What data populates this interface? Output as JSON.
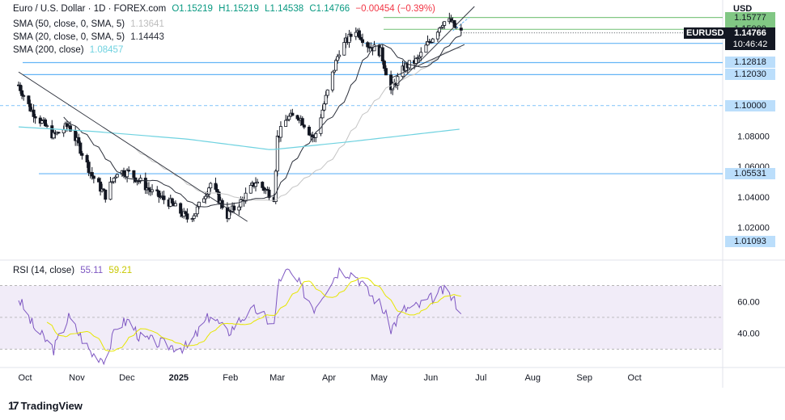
{
  "header": {
    "symbol_title": "Euro / U.S. Dollar · 1D · FOREX.com",
    "ohlc": {
      "o": "O1.15219",
      "h": "H1.15219",
      "l": "L1.14538",
      "c": "C1.14766",
      "chg": "−0.00454 (−0.39%)"
    }
  },
  "legend": {
    "sma50": {
      "label": "SMA (50, close, 0, SMA, 5)",
      "value": "1.13641",
      "color": "#bdbdbd"
    },
    "sma20": {
      "label": "SMA (20, close, 0, SMA, 5)",
      "value": "1.14443",
      "color": "#2a2e39"
    },
    "sma200": {
      "label": "SMA (200, close)",
      "value": "1.08457",
      "color": "#6fd2e0"
    }
  },
  "currency": "USD",
  "price_axis": {
    "ticks": [
      "1.10000",
      "1.08000",
      "1.06000",
      "1.04000",
      "1.02000"
    ],
    "current": {
      "symbol": "EURUSD",
      "price": "1.14766",
      "countdown": "10:46:42"
    },
    "levels": [
      {
        "value": "1.15777",
        "color": "#81c784",
        "text": "#131722"
      },
      {
        "value": "1.15000",
        "color": "#81c784",
        "text": "#131722"
      },
      {
        "value": "1.14079",
        "color": "#bbdefb",
        "text": "#131722"
      },
      {
        "value": "1.12818",
        "color": "#bbdefb",
        "text": "#131722"
      },
      {
        "value": "1.12030",
        "color": "#bbdefb",
        "text": "#131722"
      },
      {
        "value": "1.10000",
        "color": "#bbdefb",
        "text": "#131722"
      },
      {
        "value": "1.05531",
        "color": "#bbdefb",
        "text": "#131722"
      },
      {
        "value": "1.01093",
        "color": "#bbdefb",
        "text": "#131722"
      }
    ]
  },
  "rsi": {
    "label": "RSI (14, close)",
    "value": "55.11",
    "ma_value": "59.21",
    "ticks": [
      "60.00",
      "40.00"
    ]
  },
  "time_axis": [
    "Oct",
    "Nov",
    "Dec",
    "2025",
    "Feb",
    "Mar",
    "Apr",
    "May",
    "Jun",
    "Jul",
    "Aug",
    "Sep",
    "Oct"
  ],
  "footer": {
    "brand": "TradingView"
  },
  "chart_data": {
    "type": "candlestick",
    "price_range": [
      1.005,
      1.165
    ],
    "rsi_range": [
      22,
      82
    ],
    "anchors": [
      [
        "2024-10-01",
        1.1135
      ],
      [
        "2024-10-08",
        1.098
      ],
      [
        "2024-10-15",
        1.089
      ],
      [
        "2024-10-22",
        1.08
      ],
      [
        "2024-10-31",
        1.087
      ],
      [
        "2024-11-06",
        1.074
      ],
      [
        "2024-11-14",
        1.054
      ],
      [
        "2024-11-22",
        1.041
      ],
      [
        "2024-11-29",
        1.057
      ],
      [
        "2024-12-06",
        1.056
      ],
      [
        "2024-12-13",
        1.05
      ],
      [
        "2024-12-20",
        1.043
      ],
      [
        "2024-12-31",
        1.036
      ],
      [
        "2025-01-10",
        1.026
      ],
      [
        "2025-01-15",
        1.03
      ],
      [
        "2025-01-24",
        1.049
      ],
      [
        "2025-02-03",
        1.028
      ],
      [
        "2025-02-12",
        1.038
      ],
      [
        "2025-02-20",
        1.05
      ],
      [
        "2025-03-03",
        1.04
      ],
      [
        "2025-03-05",
        1.079
      ],
      [
        "2025-03-11",
        1.092
      ],
      [
        "2025-03-18",
        1.093
      ],
      [
        "2025-03-27",
        1.078
      ],
      [
        "2025-04-03",
        1.105
      ],
      [
        "2025-04-11",
        1.136
      ],
      [
        "2025-04-21",
        1.15
      ],
      [
        "2025-04-28",
        1.14
      ],
      [
        "2025-05-06",
        1.135
      ],
      [
        "2025-05-12",
        1.11
      ],
      [
        "2025-05-20",
        1.125
      ],
      [
        "2025-05-28",
        1.13
      ],
      [
        "2025-06-04",
        1.142
      ],
      [
        "2025-06-12",
        1.155
      ],
      [
        "2025-06-17",
        1.155
      ],
      [
        "2025-06-20",
        1.15
      ],
      [
        "2025-06-23",
        1.1477
      ]
    ],
    "sma200_anchors": [
      [
        "2024-10-01",
        1.086
      ],
      [
        "2024-11-15",
        1.083
      ],
      [
        "2025-01-10",
        1.078
      ],
      [
        "2025-03-01",
        1.071
      ],
      [
        "2025-04-15",
        1.076
      ],
      [
        "2025-06-23",
        1.0846
      ]
    ],
    "rsi_anchors": [
      [
        "2024-10-01",
        62
      ],
      [
        "2024-10-10",
        44
      ],
      [
        "2024-10-22",
        30
      ],
      [
        "2024-10-31",
        50
      ],
      [
        "2024-11-06",
        40
      ],
      [
        "2024-11-14",
        27
      ],
      [
        "2024-11-22",
        24
      ],
      [
        "2024-11-29",
        45
      ],
      [
        "2024-12-06",
        48
      ],
      [
        "2024-12-13",
        37
      ],
      [
        "2024-12-20",
        35
      ],
      [
        "2024-12-31",
        32
      ],
      [
        "2025-01-10",
        31
      ],
      [
        "2025-01-24",
        52
      ],
      [
        "2025-02-03",
        40
      ],
      [
        "2025-02-12",
        50
      ],
      [
        "2025-02-20",
        55
      ],
      [
        "2025-03-03",
        45
      ],
      [
        "2025-03-06",
        74
      ],
      [
        "2025-03-11",
        79
      ],
      [
        "2025-03-18",
        71
      ],
      [
        "2025-03-27",
        56
      ],
      [
        "2025-04-03",
        68
      ],
      [
        "2025-04-11",
        80
      ],
      [
        "2025-04-21",
        77
      ],
      [
        "2025-04-28",
        66
      ],
      [
        "2025-05-06",
        58
      ],
      [
        "2025-05-12",
        43
      ],
      [
        "2025-05-20",
        55
      ],
      [
        "2025-05-28",
        57
      ],
      [
        "2025-06-04",
        61
      ],
      [
        "2025-06-12",
        67
      ],
      [
        "2025-06-17",
        63
      ],
      [
        "2025-06-20",
        59
      ],
      [
        "2025-06-23",
        55
      ]
    ],
    "trendlines": [
      {
        "from": [
          "2024-10-01",
          1.122
        ],
        "to": [
          "2025-02-15",
          1.024
        ],
        "color": "#2a2e39"
      },
      {
        "from": [
          "2025-05-12",
          1.11
        ],
        "to": [
          "2025-07-01",
          1.165
        ],
        "color": "#2a2e39"
      },
      {
        "from": [
          "2025-05-12",
          1.118
        ],
        "to": [
          "2025-06-25",
          1.14
        ],
        "color": "#2a2e39"
      }
    ]
  }
}
